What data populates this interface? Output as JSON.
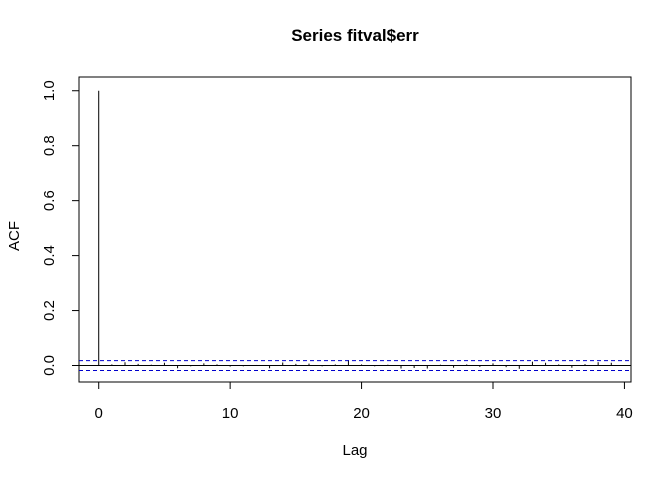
{
  "chart_data": {
    "type": "bar",
    "title": "Series  fitval$err",
    "xlabel": "Lag",
    "ylabel": "ACF",
    "xlim": [
      -1.5,
      40.5
    ],
    "ylim": [
      -0.06,
      1.05
    ],
    "x_ticks": [
      0,
      10,
      20,
      30,
      40
    ],
    "y_ticks": [
      0.0,
      0.2,
      0.4,
      0.6,
      0.8,
      1.0
    ],
    "x_tick_labels": [
      "0",
      "10",
      "20",
      "30",
      "40"
    ],
    "y_tick_labels": [
      "0.0",
      "0.2",
      "0.4",
      "0.6",
      "0.8",
      "1.0"
    ],
    "lags": [
      0,
      1,
      2,
      3,
      4,
      5,
      6,
      7,
      8,
      9,
      10,
      11,
      12,
      13,
      14,
      15,
      16,
      17,
      18,
      19,
      20,
      21,
      22,
      23,
      24,
      25,
      26,
      27,
      28,
      29,
      30,
      31,
      32,
      33,
      34,
      35,
      36,
      37,
      38,
      39
    ],
    "values": [
      1.0,
      0.004,
      0.012,
      0.006,
      0.003,
      0.01,
      -0.01,
      -0.003,
      0.008,
      0.004,
      -0.004,
      -0.003,
      0.002,
      -0.01,
      0.011,
      0.006,
      0.007,
      -0.003,
      0.004,
      0.02,
      0.004,
      -0.003,
      0.003,
      -0.011,
      -0.009,
      -0.011,
      0.003,
      -0.008,
      0.004,
      -0.005,
      0.008,
      -0.006,
      -0.012,
      0.014,
      0.01,
      0.004,
      -0.008,
      0.005,
      0.012,
      0.01
    ],
    "confidence_band": [
      0.018,
      -0.018
    ],
    "colors": {
      "bars": "#000000",
      "band": "#0000cc",
      "zero_line": "#000000"
    },
    "grid": false
  }
}
